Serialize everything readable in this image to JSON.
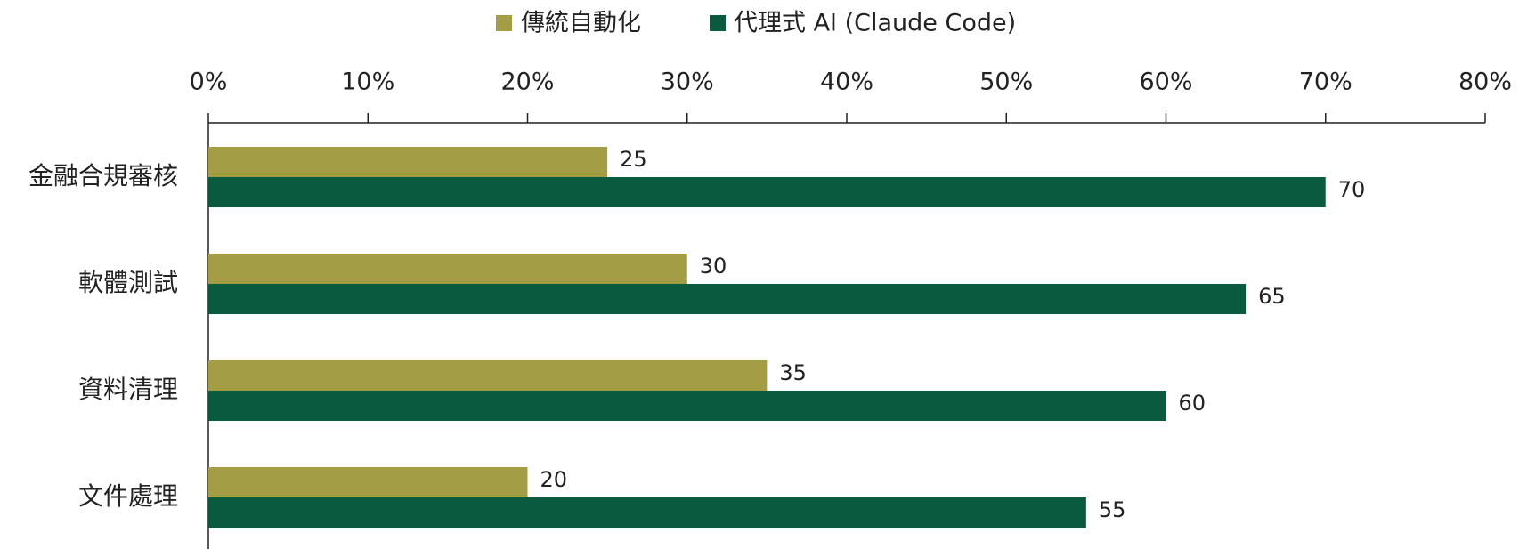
{
  "chart_data": {
    "type": "bar",
    "orientation": "horizontal",
    "categories": [
      "金融合規審核",
      "軟體測試",
      "資料清理",
      "文件處理"
    ],
    "series": [
      {
        "name": "傳統自動化",
        "color": "#a39d45",
        "values": [
          25,
          30,
          35,
          20
        ]
      },
      {
        "name": "代理式 AI (Claude Code)",
        "color": "#0a5a40",
        "values": [
          70,
          65,
          60,
          55
        ]
      }
    ],
    "xlim": [
      0,
      80
    ],
    "xticks": [
      {
        "value": 0,
        "label": "0%"
      },
      {
        "value": 10,
        "label": "10%"
      },
      {
        "value": 20,
        "label": "20%"
      },
      {
        "value": 30,
        "label": "30%"
      },
      {
        "value": 40,
        "label": "40%"
      },
      {
        "value": 50,
        "label": "50%"
      },
      {
        "value": 60,
        "label": "60%"
      },
      {
        "value": 70,
        "label": "70%"
      },
      {
        "value": 80,
        "label": "80%"
      }
    ],
    "legend": "top"
  }
}
